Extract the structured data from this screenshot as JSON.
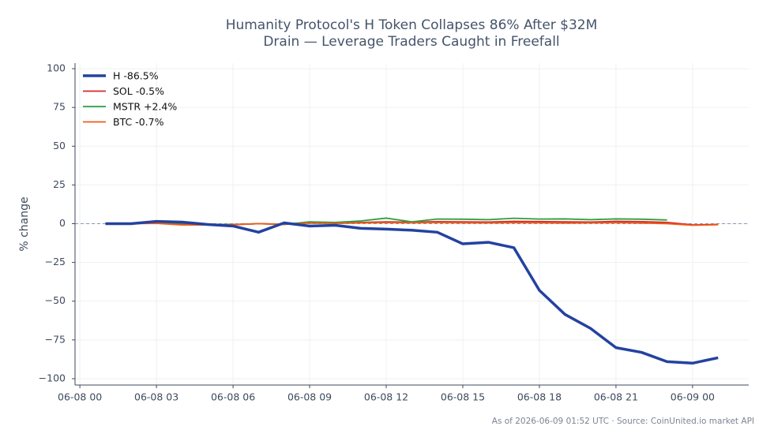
{
  "chart_data": {
    "type": "line",
    "title_lines": [
      "Humanity Protocol's H Token Collapses 86% After $32M",
      "Drain — Leverage Traders Caught in Freefall"
    ],
    "ylabel": "% change",
    "footnote": "As of 2026-06-09 01:52 UTC · Source: CoinUnited.io market API",
    "x": [
      1,
      2,
      3,
      4,
      5,
      6,
      7,
      8,
      9,
      10,
      11,
      12,
      13,
      14,
      15,
      16,
      17,
      18,
      19,
      20,
      21,
      22,
      23,
      24,
      25
    ],
    "series": [
      {
        "name": "H -86.5%",
        "color": "#2342a0",
        "width": 3.5,
        "values": [
          0,
          0,
          1.5,
          1,
          -0.5,
          -1.5,
          -5.5,
          0.5,
          -1.5,
          -1,
          -3,
          -3.5,
          -4.2,
          -5.5,
          -13,
          -12,
          -15.5,
          -43,
          -58.5,
          -67.5,
          -80,
          -83,
          -89,
          -90,
          -86.5
        ]
      },
      {
        "name": "SOL -0.5%",
        "color": "#d62728",
        "width": 1.8,
        "values": [
          0.3,
          0.2,
          0.5,
          -0.3,
          -0.5,
          -0.6,
          0,
          -0.4,
          0.6,
          0.4,
          0.8,
          1.2,
          1,
          1.3,
          1.2,
          1.1,
          1.5,
          1.4,
          1.2,
          1.1,
          1.5,
          1.3,
          0.8,
          -0.8,
          -0.5
        ]
      },
      {
        "name": "MSTR +2.4%",
        "color": "#2ca040",
        "width": 1.8,
        "values": [
          0,
          0,
          0.5,
          -0.5,
          -0.5,
          -0.5,
          0,
          -0.5,
          1.2,
          0.8,
          1.8,
          3.6,
          1.2,
          3,
          2.9,
          2.6,
          3.5,
          3,
          3.1,
          2.6,
          3.1,
          2.9,
          2.4,
          null,
          null
        ]
      },
      {
        "name": "BTC -0.7%",
        "color": "#f05a1a",
        "width": 1.8,
        "values": [
          0,
          0,
          0.2,
          -0.8,
          -0.8,
          -0.6,
          0,
          -0.3,
          0.4,
          0.2,
          0.5,
          0.7,
          0.6,
          0.8,
          0.6,
          0.5,
          0.7,
          0.6,
          0.4,
          0.5,
          0.7,
          0.4,
          0,
          -1,
          -0.7
        ]
      }
    ],
    "xlim": [
      -0.19,
      26.2
    ],
    "xticks": [
      {
        "value": 0,
        "label": "06-08 00"
      },
      {
        "value": 3,
        "label": "06-08 03"
      },
      {
        "value": 6,
        "label": "06-08 06"
      },
      {
        "value": 9,
        "label": "06-08 09"
      },
      {
        "value": 12,
        "label": "06-08 12"
      },
      {
        "value": 15,
        "label": "06-08 15"
      },
      {
        "value": 18,
        "label": "06-08 18"
      },
      {
        "value": 21,
        "label": "06-08 21"
      },
      {
        "value": 24,
        "label": "06-09 00"
      }
    ],
    "ylim": [
      -104.1,
      103.6
    ],
    "yticks": [
      {
        "value": -100,
        "label": "−100"
      },
      {
        "value": -75,
        "label": "−75"
      },
      {
        "value": -50,
        "label": "−50"
      },
      {
        "value": -25,
        "label": "−25"
      },
      0,
      25,
      50,
      75,
      100
    ],
    "reference_line": 0,
    "grid": true,
    "legend": "upper left"
  }
}
